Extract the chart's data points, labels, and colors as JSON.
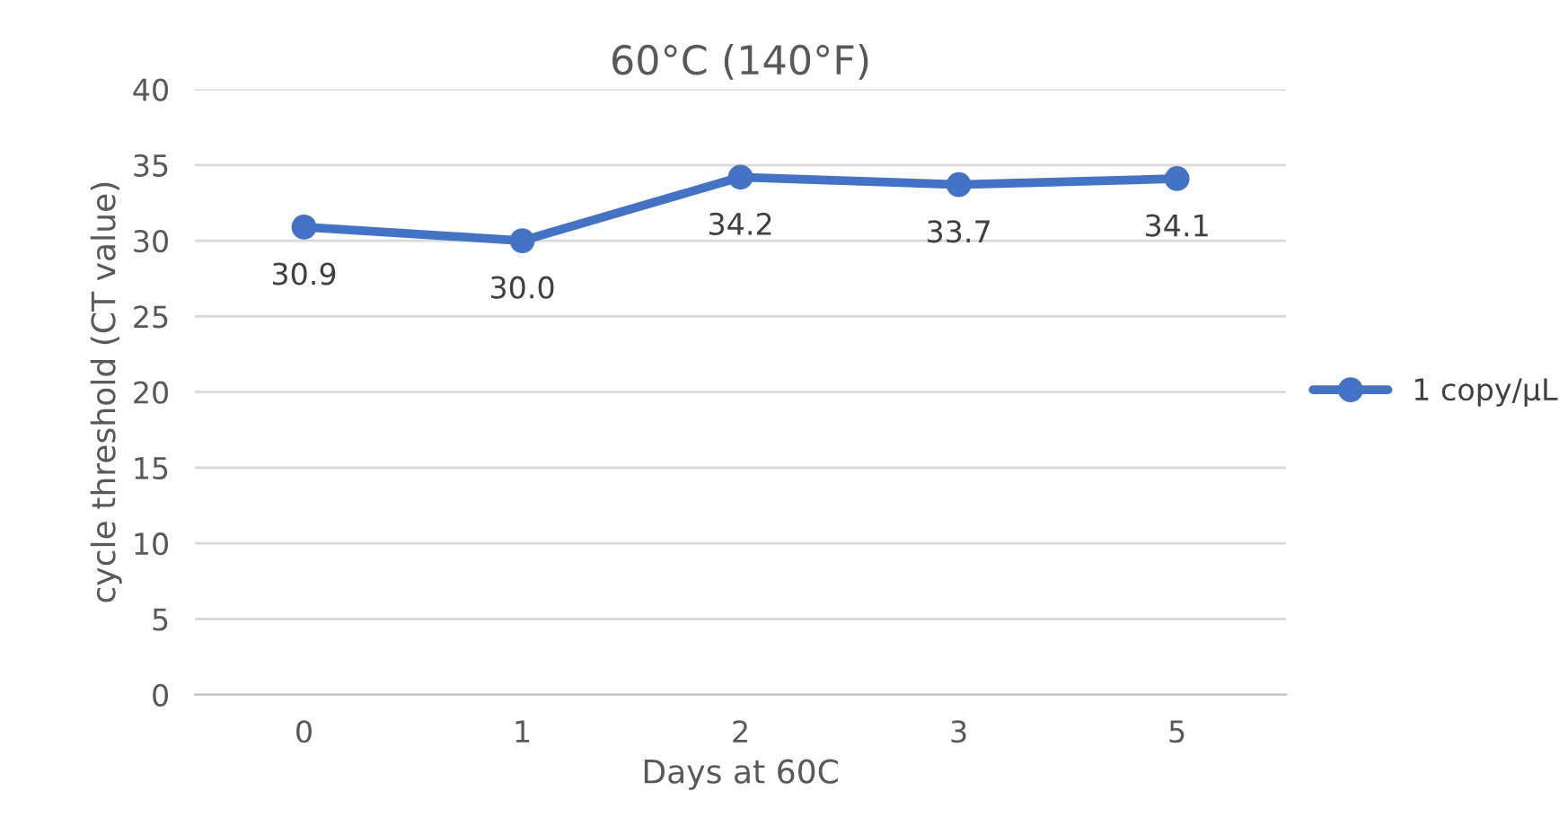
{
  "chart_data": {
    "type": "line",
    "title": "60°C (140°F)",
    "xlabel": "Days at 60C",
    "ylabel": "cycle threshold (CT value)",
    "categories": [
      "0",
      "1",
      "2",
      "3",
      "5"
    ],
    "series": [
      {
        "name": "1 copy/μL",
        "color": "#4472c4",
        "values": [
          30.9,
          30.0,
          34.2,
          33.7,
          34.1
        ],
        "value_labels": [
          "30.9",
          "30.0",
          "34.2",
          "33.7",
          "34.1"
        ]
      }
    ],
    "ylim": [
      0,
      40
    ],
    "yticks": [
      0,
      5,
      10,
      15,
      20,
      25,
      30,
      35,
      40
    ],
    "grid": "y",
    "legend": "right",
    "marker": "circle",
    "line_style": "solid"
  }
}
